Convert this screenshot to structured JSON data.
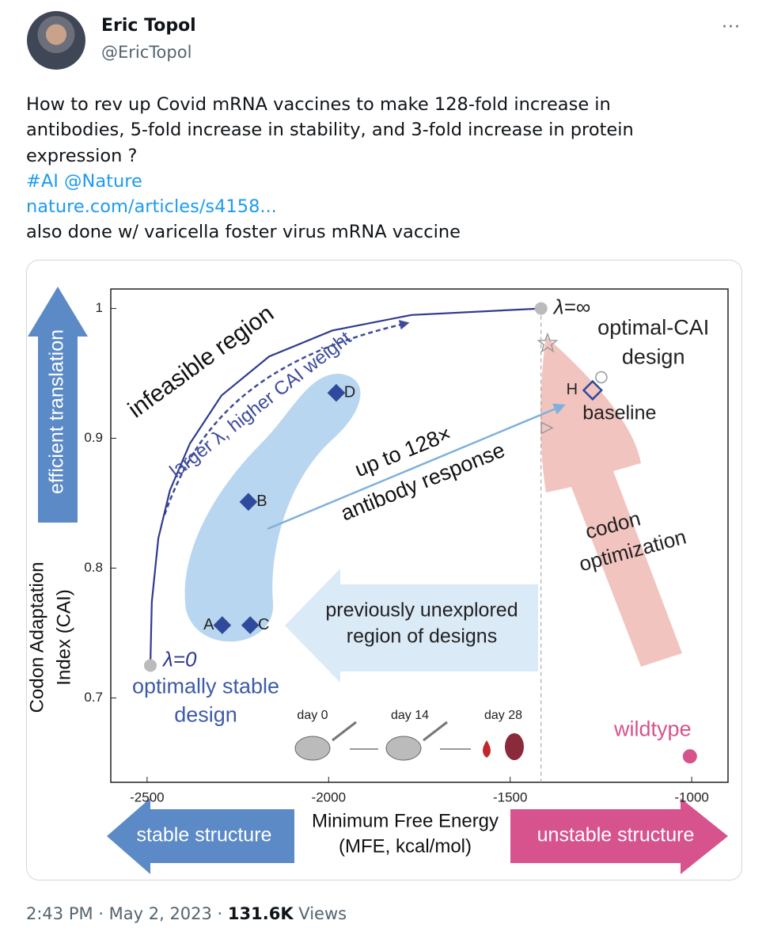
{
  "tweet": {
    "name": "Eric Topol",
    "handle": "@EricTopol",
    "more": "···",
    "text_lines": [
      "How to rev up Covid mRNA vaccines to make 128-fold increase in",
      "antibodies, 5-fold increase in stability, and 3-fold increase in protein",
      "expression ?"
    ],
    "hashtag": "#AI",
    "mention": "@Nature",
    "link": "nature.com/articles/s4158...",
    "last_line": "also done w/ varicella foster virus mRNA vaccine",
    "meta": "2:43 PM · May 2, 2023 · ",
    "views": "131.6K",
    "views_word": " Views"
  },
  "figure": {
    "xlabel": [
      "Minimum Free Energy",
      "(MFE, kcal/mol)"
    ],
    "ylabel": [
      "Codon Adaptation",
      "Index (CAI)"
    ],
    "xlim": [
      -2600,
      -900
    ],
    "ylim": [
      0.635,
      1.015
    ],
    "xticks": [
      -2500,
      -2000,
      -1500,
      -1000
    ],
    "yticks": [
      0.7,
      0.8,
      0.9,
      1
    ],
    "points": [
      {
        "label": "A",
        "x": -2293,
        "y": 0.756
      },
      {
        "label": "C",
        "x": -2216,
        "y": 0.756
      },
      {
        "label": "B",
        "x": -2221,
        "y": 0.851
      },
      {
        "label": "D",
        "x": -1979,
        "y": 0.935
      }
    ],
    "baseline": {
      "label": "H",
      "text": "baseline",
      "x": -1273,
      "y": 0.937
    },
    "frontier": {
      "x": [
        -2491,
        -2487,
        -2469,
        -2437,
        -2382,
        -2295,
        -2164,
        -1990,
        -1772,
        -1415
      ],
      "y": [
        0.725,
        0.774,
        0.823,
        0.86,
        0.896,
        0.933,
        0.963,
        0.983,
        0.995,
        1.0
      ]
    },
    "lambda0": {
      "label": "λ=0",
      "text": [
        "optimally stable",
        "design"
      ],
      "x": -2491,
      "y": 0.725
    },
    "lambda_inf": {
      "label": "λ=∞",
      "text": [
        "optimal-CAI",
        "design"
      ],
      "x": -1415,
      "y": 1.0
    },
    "wildtype": {
      "label": "wildtype",
      "x": -1005,
      "y": 0.655
    },
    "others": [
      {
        "shape": "star",
        "x": -1397,
        "y": 0.973
      },
      {
        "shape": "circle",
        "x": -1249,
        "y": 0.947
      },
      {
        "shape": "triangle",
        "x": -1401,
        "y": 0.908
      }
    ],
    "infeasible": "infeasible region",
    "lambda_arrow": "larger λ, higher CAI weight",
    "response": [
      "up to 128×",
      "antibody response"
    ],
    "codon": [
      "codon",
      "optimization"
    ],
    "unexplored": [
      "previously unexplored",
      "region of designs"
    ],
    "days": [
      "day 0",
      "day 14",
      "day 28"
    ],
    "efficient": "efficient translation",
    "stable": "stable structure",
    "unstable": "unstable structure"
  }
}
